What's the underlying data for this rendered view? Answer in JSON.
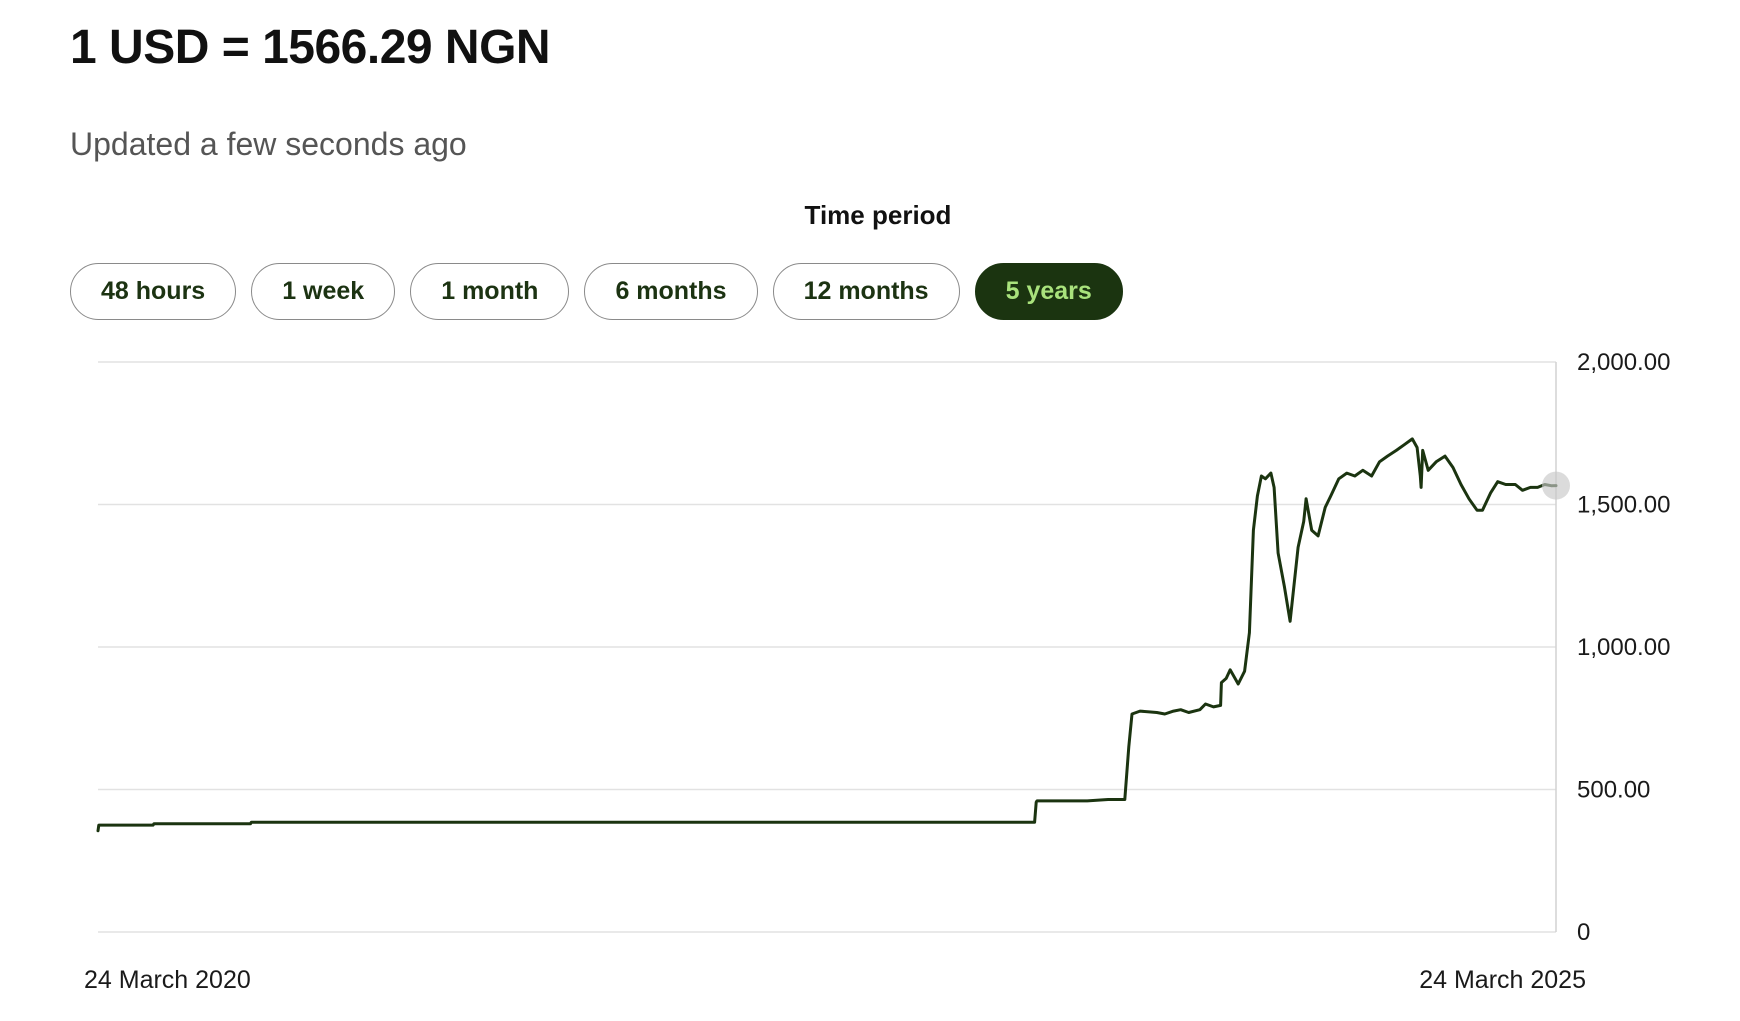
{
  "header": {
    "rate_title": "1 USD = 1566.29 NGN",
    "updated_text": "Updated a few seconds ago"
  },
  "period_selector": {
    "heading": "Time period",
    "options": [
      "48 hours",
      "1 week",
      "1 month",
      "6 months",
      "12 months",
      "5 years"
    ],
    "selected": "5 years"
  },
  "colors": {
    "line": "#1b3410",
    "active_button_bg": "#1b3410",
    "active_button_text": "#a9e27c",
    "marker": "#c8c8c8"
  },
  "chart_data": {
    "type": "line",
    "title": "",
    "xlabel": "",
    "ylabel": "",
    "ylim": [
      0,
      2000
    ],
    "y_ticks": [
      0,
      500,
      1000,
      1500,
      2000
    ],
    "y_tick_labels": [
      "0",
      "500.00",
      "1,000.00",
      "1,500.00",
      "2,000.00"
    ],
    "y_axis_position": "right",
    "x_tick_labels": [
      "24 March 2020",
      "24 March 2025"
    ],
    "xlim": [
      "2020-03-24",
      "2025-03-24"
    ],
    "grid": true,
    "series": [
      {
        "x": [
          "2020-03-24",
          "2020-03-25",
          "2020-06-01",
          "2020-06-02",
          "2020-10-01",
          "2020-10-02",
          "2021-06-01",
          "2022-06-01",
          "2023-06-10",
          "2023-06-12",
          "2023-06-13",
          "2023-06-20",
          "2023-08-15",
          "2023-09-10",
          "2023-10-01",
          "2023-10-06",
          "2023-10-10",
          "2023-10-20",
          "2023-11-10",
          "2023-11-20",
          "2023-12-01",
          "2023-12-10",
          "2023-12-20",
          "2024-01-03",
          "2024-01-10",
          "2024-01-20",
          "2024-01-29",
          "2024-01-30",
          "2024-02-05",
          "2024-02-10",
          "2024-02-20",
          "2024-02-28",
          "2024-03-05",
          "2024-03-10",
          "2024-03-15",
          "2024-03-20",
          "2024-03-25",
          "2024-04-01",
          "2024-04-05",
          "2024-04-10",
          "2024-04-18",
          "2024-04-25",
          "2024-05-05",
          "2024-05-12",
          "2024-05-15",
          "2024-05-22",
          "2024-05-30",
          "2024-06-08",
          "2024-06-15",
          "2024-06-25",
          "2024-07-05",
          "2024-07-15",
          "2024-07-25",
          "2024-08-05",
          "2024-08-15",
          "2024-08-25",
          "2024-09-05",
          "2024-09-15",
          "2024-09-25",
          "2024-10-01",
          "2024-10-05",
          "2024-10-06",
          "2024-10-08",
          "2024-10-15",
          "2024-10-25",
          "2024-11-05",
          "2024-11-15",
          "2024-11-25",
          "2024-12-05",
          "2024-12-15",
          "2024-12-22",
          "2025-01-01",
          "2025-01-10",
          "2025-01-20",
          "2025-02-01",
          "2025-02-10",
          "2025-02-20",
          "2025-03-01",
          "2025-03-10",
          "2025-03-18",
          "2025-03-24"
        ],
        "values": [
          355,
          375,
          375,
          380,
          380,
          385,
          385,
          385,
          385,
          455,
          460,
          460,
          460,
          465,
          465,
          650,
          765,
          775,
          770,
          765,
          775,
          780,
          770,
          780,
          800,
          790,
          795,
          875,
          890,
          920,
          870,
          915,
          1050,
          1410,
          1530,
          1600,
          1590,
          1610,
          1560,
          1330,
          1210,
          1090,
          1350,
          1440,
          1520,
          1410,
          1390,
          1490,
          1530,
          1590,
          1610,
          1600,
          1620,
          1600,
          1650,
          1670,
          1690,
          1710,
          1730,
          1700,
          1600,
          1560,
          1690,
          1620,
          1650,
          1670,
          1630,
          1570,
          1520,
          1480,
          1480,
          1540,
          1580,
          1570,
          1570,
          1550,
          1560,
          1560,
          1570,
          1566,
          1566.29
        ]
      }
    ],
    "current_value": 1566.29
  }
}
